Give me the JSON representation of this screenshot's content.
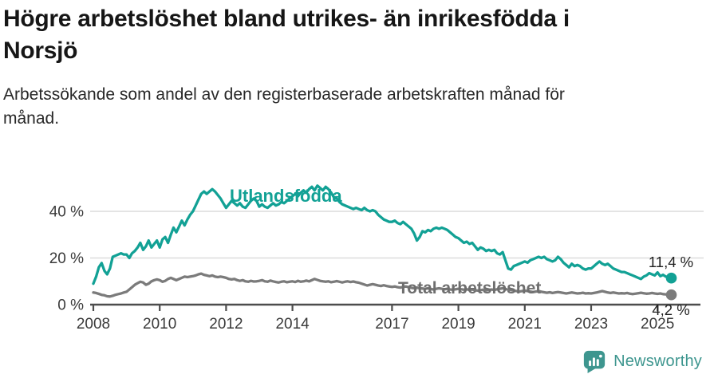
{
  "header": {
    "title_lines": [
      "Högre arbetslöshet bland utrikes- än inrikesfödda i",
      "Norsjö"
    ],
    "subtitle_lines": [
      "Arbetssökande som andel av den registerbaserade arbetskraften månad för",
      "månad."
    ]
  },
  "colors": {
    "series_foreign": "#12a195",
    "series_total": "#7b7b7b",
    "series_total_label": "#6e6e6e",
    "grid": "#dcdcdc",
    "axis": "#4d4d4d",
    "logo": "#3e968f"
  },
  "chart_data": {
    "type": "line",
    "title": "Högre arbetslöshet bland utrikes- än inrikesfödda i Norsjö",
    "subtitle": "Arbetssökande som andel av den registerbaserade arbetskraften månad för månad.",
    "frequency": "monthly",
    "x_start": "2008-01",
    "x_end": "2025-06",
    "ylim": [
      0,
      52
    ],
    "grid": "horizontal",
    "yticks": [
      {
        "label": "0 %",
        "value": 0
      },
      {
        "label": "20 %",
        "value": 20
      },
      {
        "label": "40 %",
        "value": 40
      }
    ],
    "xticks": [
      {
        "label": "2008",
        "year": 2008
      },
      {
        "label": "2010",
        "year": 2010
      },
      {
        "label": "2012",
        "year": 2012
      },
      {
        "label": "2014",
        "year": 2014
      },
      {
        "label": "2017",
        "year": 2017
      },
      {
        "label": "2019",
        "year": 2019
      },
      {
        "label": "2021",
        "year": 2021
      },
      {
        "label": "2023",
        "year": 2023
      },
      {
        "label": "2025",
        "year": 2025
      }
    ],
    "series": [
      {
        "name": "Utlandsfödda",
        "color": "#12a195",
        "end_label": "11,4 %",
        "end_value": 11.4,
        "values": [
          9,
          12,
          16,
          17.8,
          14.5,
          13,
          15.5,
          20.5,
          21,
          21.5,
          22,
          21.5,
          21.5,
          20,
          22,
          23,
          24.5,
          26.5,
          23.5,
          25,
          27.5,
          24.5,
          26,
          27.5,
          24.5,
          28,
          29,
          26.5,
          30,
          33,
          31,
          33.5,
          36,
          34,
          36.5,
          38.5,
          40,
          42.5,
          45,
          47.5,
          48.5,
          47.5,
          48.5,
          49.5,
          48.5,
          47,
          45.5,
          43.5,
          41.5,
          43,
          44.5,
          43.5,
          42.5,
          43.5,
          42,
          41.5,
          43,
          44.5,
          45.5,
          44.5,
          42,
          43,
          42,
          41.5,
          42.5,
          43.5,
          42.5,
          43,
          44,
          43.5,
          44.5,
          45.5,
          46.5,
          47.5,
          46.5,
          48,
          49,
          48,
          49.5,
          50.5,
          49,
          51,
          50,
          49,
          50.5,
          49.5,
          48,
          46,
          45.5,
          44,
          43,
          42.5,
          42,
          41.5,
          41,
          41.5,
          41,
          40.5,
          41.5,
          40.5,
          40,
          40.5,
          40,
          38.5,
          37.5,
          36.5,
          36,
          35.5,
          35.5,
          36,
          35,
          34.5,
          35.5,
          34.5,
          33.5,
          32.5,
          30.5,
          27.5,
          29,
          31.5,
          31,
          32,
          31.5,
          32.5,
          33,
          32.5,
          33,
          32.5,
          32,
          31,
          30,
          29,
          28.5,
          27.5,
          26.5,
          27,
          26,
          26.5,
          25,
          23.5,
          24.5,
          24,
          23,
          23.5,
          23,
          23.5,
          22,
          21.5,
          22.5,
          19,
          15.5,
          15,
          16.5,
          17,
          17.5,
          18,
          18.5,
          18,
          19,
          19.5,
          20,
          20.5,
          20,
          20.5,
          19.5,
          19,
          18.5,
          19,
          20.5,
          19.5,
          18,
          17,
          16,
          17.5,
          16.5,
          17,
          16.5,
          15.5,
          15,
          15.5,
          15.5,
          16.5,
          17.5,
          18.5,
          17.5,
          17,
          17.5,
          16.5,
          15.5,
          15,
          14.5,
          14,
          14,
          13.5,
          13,
          12.5,
          12,
          11.5,
          11,
          12,
          12.5,
          13.5,
          13,
          12.5,
          13.8,
          12.2,
          12.8,
          12,
          11.7,
          11.4
        ]
      },
      {
        "name": "Total arbetslöshet",
        "color": "#7b7b7b",
        "end_label": "4,2 %",
        "end_value": 4.2,
        "values": [
          5.2,
          5,
          4.6,
          4.2,
          4,
          3.6,
          3.5,
          3.8,
          4.2,
          4.5,
          4.8,
          5.2,
          5.5,
          6.5,
          7.5,
          8.5,
          9.2,
          9.8,
          9.5,
          8.5,
          9,
          10,
          10.5,
          10.8,
          10.5,
          9.8,
          10.2,
          11,
          11.5,
          11,
          10.5,
          11,
          11.5,
          12,
          11.8,
          12,
          12.2,
          12.5,
          13,
          13.3,
          12.8,
          12.5,
          12.2,
          12.5,
          12,
          11.8,
          12,
          11.8,
          11.5,
          11,
          10.8,
          11,
          10.5,
          10.2,
          10.5,
          10,
          9.8,
          10.2,
          9.9,
          10,
          10.2,
          10.5,
          10,
          9.8,
          10.3,
          10,
          9.7,
          9.5,
          9.8,
          10,
          9.6,
          9.8,
          10,
          9.7,
          10.2,
          9.8,
          10,
          10.3,
          10,
          10.5,
          11,
          10.6,
          10.2,
          10,
          9.8,
          10,
          9.6,
          9.8,
          10.1,
          9.8,
          9.5,
          9.8,
          10,
          9.7,
          9.9,
          9.6,
          9.4,
          9,
          8.6,
          8.2,
          8.5,
          8.8,
          8.5,
          8.2,
          8,
          8.3,
          8,
          7.8,
          7.6,
          7.8,
          7.5,
          7.3,
          7.6,
          7.8,
          7.5,
          7.2,
          7,
          7.3,
          7,
          6.9,
          6.8,
          7,
          6.7,
          6.5,
          6.8,
          7,
          6.8,
          6.6,
          6.8,
          6.5,
          6.4,
          6.6,
          6.8,
          6.6,
          6.4,
          6.6,
          6.3,
          6.5,
          6.2,
          6,
          6.2,
          6.4,
          6.1,
          6.3,
          6.5,
          6.3,
          6.6,
          6.8,
          7,
          6.7,
          6.4,
          6.2,
          6,
          5.8,
          5.6,
          5.8,
          6,
          5.8,
          5.6,
          5.4,
          5.6,
          5.8,
          5.5,
          5.3,
          5.1,
          5.3,
          5,
          5.2,
          5.4,
          5.2,
          5,
          4.8,
          5,
          5.2,
          5,
          4.8,
          4.9,
          5.1,
          4.8,
          4.9,
          4.8,
          5,
          5.2,
          5.5,
          5.8,
          5.5,
          5.2,
          5,
          5.2,
          5,
          4.8,
          4.9,
          4.8,
          5,
          4.7,
          4.5,
          4.7,
          4.9,
          5.1,
          4.9,
          4.7,
          4.8,
          5,
          4.8,
          4.6,
          4.8,
          4.5,
          4.4,
          4.3,
          4.2
        ]
      }
    ]
  },
  "footer": {
    "brand": "Newsworthy"
  }
}
